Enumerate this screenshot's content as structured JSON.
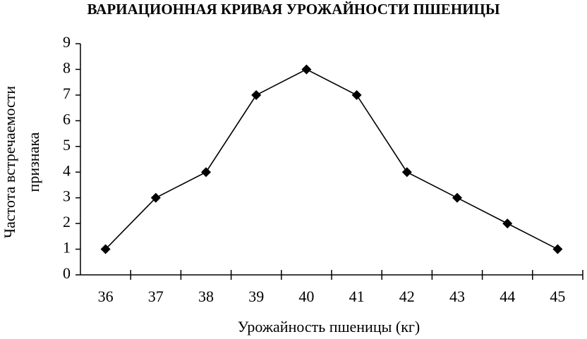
{
  "chart_data": {
    "type": "line",
    "title": "ВАРИАЦИОННАЯ КРИВАЯ УРОЖАЙНОСТИ ПШЕНИЦЫ",
    "x_label": "Урожайность пшеницы (кг)",
    "y_label": [
      "Частота встречаемости",
      "признака"
    ],
    "categories": [
      "36",
      "37",
      "38",
      "39",
      "40",
      "41",
      "42",
      "43",
      "44",
      "45"
    ],
    "values": [
      1,
      3,
      4,
      7,
      8,
      7,
      4,
      3,
      2,
      1
    ],
    "color": "#000000",
    "marker": "diamond",
    "ylim": [
      0,
      9
    ],
    "yticks": [
      0,
      1,
      2,
      3,
      4,
      5,
      6,
      7,
      8,
      9
    ]
  }
}
